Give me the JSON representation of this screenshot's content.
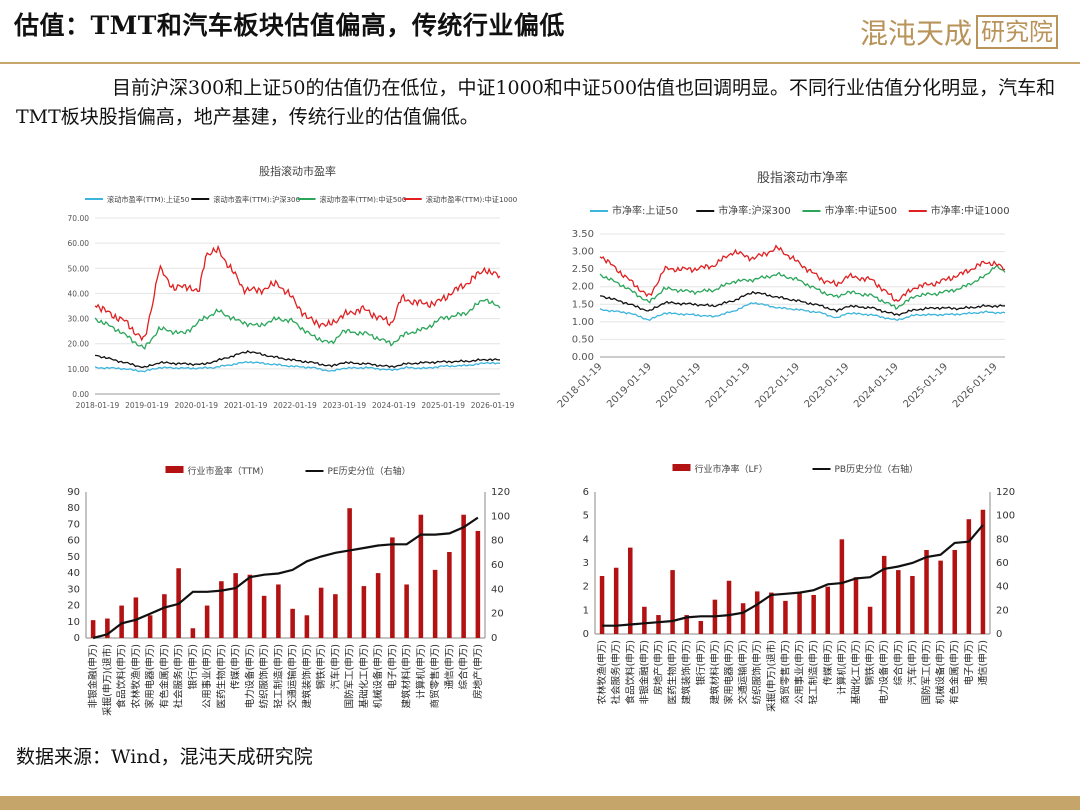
{
  "page": {
    "title": "估值：TMT和汽车板块估值偏高，传统行业偏低",
    "logo_main": "混沌天成",
    "logo_box": "研究院",
    "paragraph": "目前沪深300和上证50的估值仍在低位，中证1000和中证500估值也回调明显。不同行业估值分化明显，汽车和TMT板块股指偏高，地产基建，传统行业的估值偏低。",
    "source": "数据来源：Wind，混沌天成研究院"
  },
  "colors": {
    "accent": "#c7a56d",
    "footer": "#c5a56a",
    "bar": "#b21212",
    "line_sz50": "#3cb4dc",
    "line_hs300": "#111111",
    "line_zz500": "#2aa55a",
    "line_zz1000": "#e02020"
  },
  "chart_data": [
    {
      "id": "pe",
      "type": "line",
      "title": "股指滚动市盈率",
      "series": [
        {
          "name": "滚动市盈率(TTM):上证50",
          "color": "#3cb4dc",
          "keys": [
            [
              2018.0,
              10.5
            ],
            [
              2018.5,
              10.2
            ],
            [
              2019.0,
              9
            ],
            [
              2019.3,
              10.5
            ],
            [
              2020.0,
              10.2
            ],
            [
              2020.4,
              10.5
            ],
            [
              2021.1,
              12.8
            ],
            [
              2021.6,
              11.8
            ],
            [
              2022.0,
              11
            ],
            [
              2022.4,
              10.5
            ],
            [
              2022.8,
              9
            ],
            [
              2023.0,
              10.2
            ],
            [
              2023.5,
              10.5
            ],
            [
              2024.0,
              9.5
            ],
            [
              2024.3,
              10.5
            ],
            [
              2024.7,
              10.2
            ],
            [
              2025.0,
              11
            ],
            [
              2025.5,
              11.3
            ],
            [
              2026.0,
              12.5
            ],
            [
              2026.2,
              12
            ]
          ]
        },
        {
          "name": "滚动市盈率(TTM):沪深300",
          "color": "#111111",
          "keys": [
            [
              2018.0,
              15.5
            ],
            [
              2018.5,
              13
            ],
            [
              2019.0,
              10.5
            ],
            [
              2019.3,
              12.5
            ],
            [
              2019.8,
              12
            ],
            [
              2020.2,
              11.8
            ],
            [
              2020.6,
              14
            ],
            [
              2021.1,
              17
            ],
            [
              2021.6,
              14.8
            ],
            [
              2022.0,
              13.5
            ],
            [
              2022.4,
              12.5
            ],
            [
              2022.8,
              11
            ],
            [
              2023.0,
              12.5
            ],
            [
              2023.5,
              12
            ],
            [
              2024.0,
              10.8
            ],
            [
              2024.3,
              12
            ],
            [
              2024.7,
              12.5
            ],
            [
              2025.0,
              12.8
            ],
            [
              2025.5,
              13
            ],
            [
              2026.0,
              13.8
            ],
            [
              2026.2,
              13.5
            ]
          ]
        },
        {
          "name": "滚动市盈率(TTM):中证500",
          "color": "#2aa55a",
          "keys": [
            [
              2018.0,
              30
            ],
            [
              2018.5,
              25
            ],
            [
              2019.0,
              18
            ],
            [
              2019.3,
              26
            ],
            [
              2019.8,
              24
            ],
            [
              2020.0,
              27
            ],
            [
              2020.2,
              30
            ],
            [
              2020.5,
              33
            ],
            [
              2020.9,
              29
            ],
            [
              2021.3,
              27
            ],
            [
              2021.7,
              30
            ],
            [
              2022.0,
              29
            ],
            [
              2022.4,
              23
            ],
            [
              2022.8,
              20
            ],
            [
              2023.0,
              25
            ],
            [
              2023.5,
              24
            ],
            [
              2024.0,
              20
            ],
            [
              2024.3,
              24
            ],
            [
              2024.7,
              26
            ],
            [
              2025.0,
              30
            ],
            [
              2025.5,
              32
            ],
            [
              2025.9,
              38
            ],
            [
              2026.2,
              34
            ]
          ]
        },
        {
          "name": "滚动市盈率(TTM):中证1000",
          "color": "#e02020",
          "keys": [
            [
              2018.0,
              36
            ],
            [
              2018.2,
              33
            ],
            [
              2018.6,
              29
            ],
            [
              2019.0,
              21
            ],
            [
              2019.15,
              35
            ],
            [
              2019.3,
              50
            ],
            [
              2019.6,
              42
            ],
            [
              2019.9,
              43
            ],
            [
              2020.1,
              40
            ],
            [
              2020.25,
              56
            ],
            [
              2020.5,
              57
            ],
            [
              2020.75,
              50
            ],
            [
              2021.0,
              42
            ],
            [
              2021.3,
              41
            ],
            [
              2021.7,
              44
            ],
            [
              2022.0,
              38
            ],
            [
              2022.3,
              30
            ],
            [
              2022.7,
              27
            ],
            [
              2023.0,
              31
            ],
            [
              2023.4,
              34
            ],
            [
              2023.8,
              30
            ],
            [
              2024.0,
              28
            ],
            [
              2024.2,
              38
            ],
            [
              2024.6,
              36
            ],
            [
              2024.9,
              36
            ],
            [
              2025.2,
              40
            ],
            [
              2025.6,
              45
            ],
            [
              2025.9,
              50
            ],
            [
              2026.0,
              48
            ],
            [
              2026.2,
              47
            ]
          ]
        }
      ],
      "x_ticks": [
        "2018-01-19",
        "2019-01-19",
        "2020-01-19",
        "2021-01-19",
        "2022-01-19",
        "2023-01-19",
        "2024-01-19",
        "2025-01-19",
        "2026-01-19"
      ],
      "y_ticks": [
        "0.00",
        "10.00",
        "20.00",
        "30.00",
        "40.00",
        "50.00",
        "60.00",
        "70.00"
      ],
      "xlim": [
        2018.0,
        2026.2
      ],
      "ylim": [
        0,
        70
      ]
    },
    {
      "id": "pb",
      "type": "line",
      "title": "股指滚动市净率",
      "series": [
        {
          "name": "市净率:上证50",
          "color": "#3cb4dc",
          "keys": [
            [
              2018.0,
              1.35
            ],
            [
              2018.6,
              1.25
            ],
            [
              2019.0,
              1.05
            ],
            [
              2019.3,
              1.25
            ],
            [
              2019.9,
              1.2
            ],
            [
              2020.3,
              1.15
            ],
            [
              2020.7,
              1.3
            ],
            [
              2021.1,
              1.55
            ],
            [
              2021.6,
              1.4
            ],
            [
              2022.0,
              1.35
            ],
            [
              2022.5,
              1.25
            ],
            [
              2022.8,
              1.1
            ],
            [
              2023.0,
              1.25
            ],
            [
              2023.5,
              1.2
            ],
            [
              2024.0,
              1.05
            ],
            [
              2024.4,
              1.2
            ],
            [
              2024.8,
              1.2
            ],
            [
              2025.3,
              1.22
            ],
            [
              2025.8,
              1.28
            ],
            [
              2026.2,
              1.25
            ]
          ]
        },
        {
          "name": "市净率:沪深300",
          "color": "#111111",
          "keys": [
            [
              2018.0,
              1.75
            ],
            [
              2018.5,
              1.55
            ],
            [
              2019.0,
              1.3
            ],
            [
              2019.3,
              1.55
            ],
            [
              2019.9,
              1.5
            ],
            [
              2020.3,
              1.45
            ],
            [
              2020.7,
              1.6
            ],
            [
              2021.1,
              1.85
            ],
            [
              2021.6,
              1.7
            ],
            [
              2022.0,
              1.6
            ],
            [
              2022.5,
              1.45
            ],
            [
              2022.8,
              1.3
            ],
            [
              2023.0,
              1.45
            ],
            [
              2023.5,
              1.4
            ],
            [
              2024.0,
              1.2
            ],
            [
              2024.4,
              1.35
            ],
            [
              2024.8,
              1.4
            ],
            [
              2025.3,
              1.38
            ],
            [
              2025.8,
              1.45
            ],
            [
              2026.2,
              1.45
            ]
          ]
        },
        {
          "name": "市净率:中证500",
          "color": "#2aa55a",
          "keys": [
            [
              2018.0,
              2.35
            ],
            [
              2018.5,
              2.0
            ],
            [
              2019.0,
              1.55
            ],
            [
              2019.3,
              1.95
            ],
            [
              2019.9,
              1.85
            ],
            [
              2020.3,
              1.9
            ],
            [
              2020.7,
              2.15
            ],
            [
              2021.1,
              2.2
            ],
            [
              2021.6,
              2.35
            ],
            [
              2022.0,
              2.2
            ],
            [
              2022.5,
              1.85
            ],
            [
              2022.8,
              1.7
            ],
            [
              2023.0,
              1.85
            ],
            [
              2023.5,
              1.75
            ],
            [
              2024.0,
              1.4
            ],
            [
              2024.4,
              1.75
            ],
            [
              2024.8,
              1.8
            ],
            [
              2025.3,
              1.95
            ],
            [
              2025.8,
              2.3
            ],
            [
              2026.0,
              2.6
            ],
            [
              2026.2,
              2.4
            ]
          ]
        },
        {
          "name": "市净率:中证1000",
          "color": "#e02020",
          "keys": [
            [
              2018.0,
              2.9
            ],
            [
              2018.5,
              2.3
            ],
            [
              2019.0,
              1.7
            ],
            [
              2019.3,
              2.5
            ],
            [
              2019.9,
              2.5
            ],
            [
              2020.3,
              2.6
            ],
            [
              2020.7,
              3.0
            ],
            [
              2021.1,
              2.8
            ],
            [
              2021.6,
              3.1
            ],
            [
              2022.0,
              2.7
            ],
            [
              2022.5,
              2.2
            ],
            [
              2022.8,
              2.05
            ],
            [
              2023.0,
              2.3
            ],
            [
              2023.5,
              2.2
            ],
            [
              2024.0,
              1.6
            ],
            [
              2024.4,
              2.0
            ],
            [
              2024.8,
              2.1
            ],
            [
              2025.3,
              2.35
            ],
            [
              2025.8,
              2.7
            ],
            [
              2026.0,
              2.65
            ],
            [
              2026.2,
              2.5
            ]
          ]
        }
      ],
      "x_ticks": [
        "2018-01-19",
        "2019-01-19",
        "2020-01-19",
        "2021-01-19",
        "2022-01-19",
        "2023-01-19",
        "2024-01-19",
        "2025-01-19",
        "2026-01-19"
      ],
      "y_ticks": [
        "0.00",
        "0.50",
        "1.00",
        "1.50",
        "2.00",
        "2.50",
        "3.00",
        "3.50"
      ],
      "xlim": [
        2018.0,
        2026.2
      ],
      "ylim": [
        0,
        3.5
      ]
    },
    {
      "id": "ind_pe",
      "type": "bar",
      "legend": [
        "行业市盈率（TTM）",
        "PE历史分位（右轴）"
      ],
      "categories": [
        "非银金融(申万)",
        "采掘(申万)(退市)",
        "食品饮料(申万)",
        "农林牧渔(申万)",
        "家用电器(申万)",
        "有色金属(申万)",
        "社会服务(申万)",
        "银行(申万)",
        "公用事业(申万)",
        "医药生物(申万)",
        "传媒(申万)",
        "电力设备(申万)",
        "纺织服饰(申万)",
        "轻工制造(申万)",
        "交通运输(申万)",
        "建筑装饰(申万)",
        "钢铁(申万)",
        "汽车(申万)",
        "国防军工(申万)",
        "基础化工(申万)",
        "机械设备(申万)",
        "电子(申万)",
        "建筑材料(申万)",
        "计算机(申万)",
        "商贸零售(申万)",
        "通信(申万)",
        "综合(申万)",
        "房地产(申万)"
      ],
      "values": [
        11,
        12,
        20,
        25,
        14,
        27,
        43,
        6,
        20,
        35,
        40,
        39,
        26,
        33,
        18,
        14,
        31,
        27,
        80,
        32,
        40,
        62,
        33,
        76,
        42,
        53,
        76,
        66
      ],
      "line_values": [
        0,
        3,
        12,
        15,
        20,
        25,
        28,
        38,
        38,
        39,
        41,
        50,
        52,
        53,
        56,
        63,
        67,
        70,
        72,
        74,
        76,
        77,
        77,
        85,
        85,
        86,
        91,
        99
      ],
      "y_ticks": [
        "0",
        "10",
        "20",
        "30",
        "40",
        "50",
        "60",
        "70",
        "80",
        "90"
      ],
      "y2_ticks": [
        "0",
        "20",
        "40",
        "60",
        "80",
        "100",
        "120"
      ],
      "ylim": [
        0,
        90
      ],
      "y2lim": [
        0,
        120
      ]
    },
    {
      "id": "ind_pb",
      "type": "bar",
      "legend": [
        "行业市净率（LF）",
        "PB历史分位（右轴）"
      ],
      "categories": [
        "农林牧渔(申万)",
        "社会服务(申万)",
        "食品饮料(申万)",
        "非银金融(申万)",
        "房地产(申万)",
        "医药生物(申万)",
        "建筑装饰(申万)",
        "银行(申万)",
        "建筑材料(申万)",
        "家用电器(申万)",
        "交通运输(申万)",
        "纺织服饰(申万)",
        "采掘(申万)(退市)",
        "商贸零售(申万)",
        "公用事业(申万)",
        "轻工制造(申万)",
        "传媒(申万)",
        "计算机(申万)",
        "基础化工(申万)",
        "钢铁(申万)",
        "电力设备(申万)",
        "综合(申万)",
        "汽车(申万)",
        "国防军工(申万)",
        "机械设备(申万)",
        "有色金属(申万)",
        "电子(申万)",
        "通信(申万)"
      ],
      "values": [
        2.45,
        2.8,
        3.65,
        1.15,
        0.8,
        2.7,
        0.8,
        0.55,
        1.45,
        2.25,
        1.3,
        1.8,
        1.75,
        1.4,
        1.75,
        1.65,
        2.0,
        4.0,
        2.4,
        1.15,
        3.3,
        2.7,
        2.45,
        3.55,
        3.1,
        3.55,
        4.85,
        5.25
      ],
      "line_values": [
        7,
        7,
        8,
        9,
        10,
        11,
        14,
        15,
        15,
        16,
        18,
        25,
        33,
        34,
        35,
        37,
        42,
        43,
        47,
        48,
        55,
        57,
        60,
        65,
        67,
        77,
        78,
        92
      ],
      "y_ticks": [
        "0",
        "1",
        "2",
        "3",
        "4",
        "5",
        "6"
      ],
      "y2_ticks": [
        "0",
        "20",
        "40",
        "60",
        "80",
        "100",
        "120"
      ],
      "ylim": [
        0,
        6
      ],
      "y2lim": [
        0,
        120
      ]
    }
  ]
}
